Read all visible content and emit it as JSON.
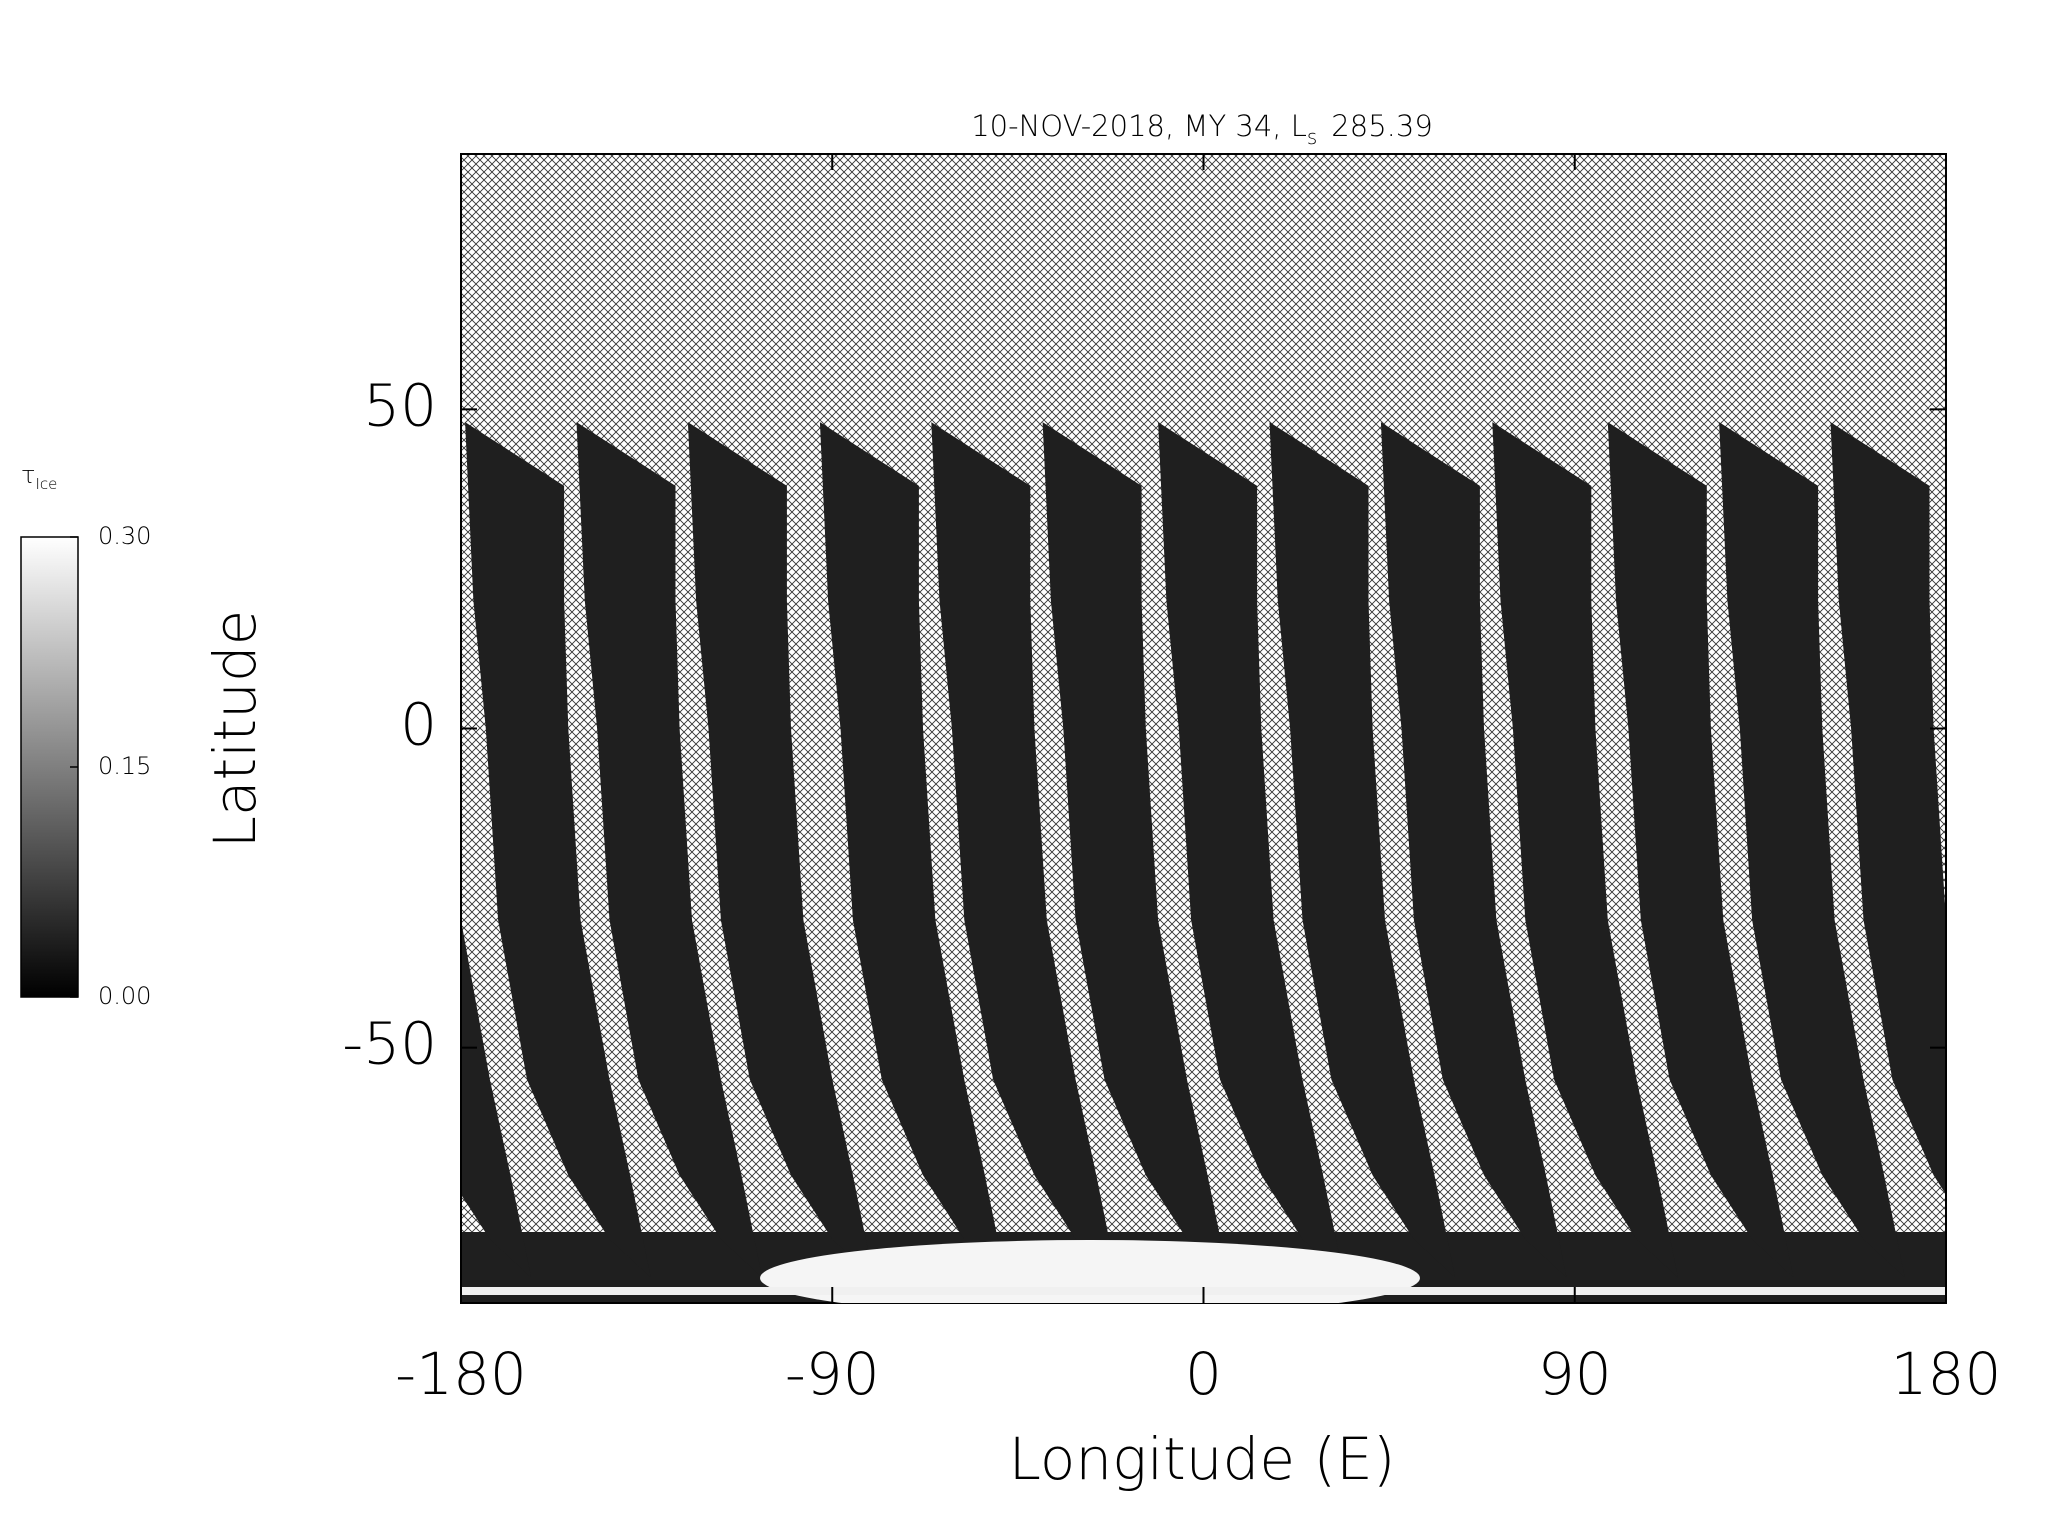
{
  "chart_data": {
    "type": "swath-map",
    "title": "10-NOV-2018, MY 34,  L",
    "title_subscript": "s",
    "title_value": "285.39",
    "x_label": "Longitude (E)",
    "y_label": "Latitude",
    "xlim": [
      -180,
      180
    ],
    "xticks": [
      -180,
      -90,
      0,
      90,
      180
    ],
    "ylim": [
      -90,
      90
    ],
    "yticks": [
      -50,
      0,
      50
    ],
    "swath_longitudes": [
      -179,
      -152,
      -125,
      -93,
      -66,
      -39,
      -11,
      16,
      43,
      70,
      98,
      125,
      152
    ],
    "swath_color": "#1f1f1f",
    "colorbar": {
      "label": "τ",
      "label_subscript": "Ice",
      "lim": [
        0,
        0.3
      ],
      "ticks": [
        {
          "value": 0,
          "label": "0.00"
        },
        {
          "value": 0.15,
          "label": "0.15"
        },
        {
          "value": 0.3,
          "label": "0.30"
        }
      ]
    }
  }
}
